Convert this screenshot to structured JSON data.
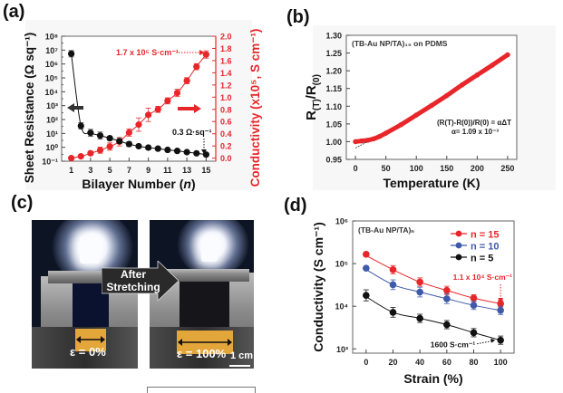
{
  "panels": {
    "a": "(a)",
    "b": "(b)",
    "c": "(c)",
    "d": "(d)"
  },
  "photo_panel": {
    "left_strain_label": "ε = 0%",
    "right_strain_label": "ε = 100%",
    "arrow_label_line1": "After",
    "arrow_label_line2": "Stretching",
    "scale_bar_label": "1 cm",
    "film_color": "#e3a63a"
  },
  "chart_data": [
    {
      "id": "a",
      "type": "line",
      "xlabel": "Bilayer Number (n)",
      "ylabel_left": "Sheet Resistance (Ω sq⁻¹)",
      "ylabel_right": "Conductivity (x10⁵, S cm⁻¹)",
      "x_ticks": [
        1,
        3,
        5,
        7,
        9,
        11,
        13,
        15
      ],
      "xlim": [
        0,
        16
      ],
      "y_left_scale": "log",
      "y_left_lim_exp": [
        -1,
        8
      ],
      "y_left_tick_labels": [
        "10⁻¹",
        "10⁰",
        "10¹",
        "10²",
        "10³",
        "10⁴",
        "10⁵",
        "10⁶",
        "10⁷",
        "10⁸"
      ],
      "y_right_lim": [
        -0.05,
        2.0
      ],
      "y_right_ticks": [
        "0.0",
        "0.2",
        "0.4",
        "0.6",
        "0.8",
        "1.0",
        "1.2",
        "1.4",
        "1.6",
        "1.8",
        "2.0"
      ],
      "x": [
        1,
        2,
        3,
        4,
        5,
        6,
        7,
        8,
        9,
        10,
        11,
        12,
        13,
        14,
        15
      ],
      "series": [
        {
          "name": "Sheet Resistance",
          "axis": "left",
          "color": "#111111",
          "values": [
            5500000,
            35,
            11,
            7,
            4.5,
            2.8,
            1.7,
            1.2,
            0.95,
            0.8,
            0.65,
            0.55,
            0.45,
            0.37,
            0.3
          ],
          "err_factor": [
            1.7,
            1.7,
            1.8,
            1.8,
            1.4,
            1.5,
            1.5,
            1.3,
            1.4,
            1.2,
            1.2,
            1.2,
            1.2,
            1.2,
            1.2
          ]
        },
        {
          "name": "Conductivity",
          "axis": "right",
          "color": "#e8262a",
          "values": [
            0.0,
            0.03,
            0.08,
            0.13,
            0.19,
            0.27,
            0.42,
            0.55,
            0.71,
            0.8,
            0.94,
            1.07,
            1.27,
            1.5,
            1.7
          ],
          "err": [
            0.01,
            0.02,
            0.03,
            0.05,
            0.06,
            0.07,
            0.06,
            0.11,
            0.11,
            0.05,
            0.05,
            0.06,
            0.05,
            0.05,
            0.06
          ]
        }
      ],
      "annotations": [
        {
          "text": "1.7 x 10⁵ S·cm⁻¹",
          "color": "#e8262a"
        },
        {
          "text": "0.3 Ω·sq⁻¹",
          "color": "#111111"
        }
      ]
    },
    {
      "id": "b",
      "type": "line",
      "title": "(TB-Au NP/TA)₁₅ on PDMS",
      "xlabel": "Temperature (K)",
      "ylabel": "R(T)/R(0)",
      "xlim": [
        -15,
        265
      ],
      "x_ticks": [
        0,
        50,
        100,
        150,
        200,
        250
      ],
      "ylim": [
        0.95,
        1.3
      ],
      "y_ticks": [
        "0.95",
        "1.00",
        "1.05",
        "1.10",
        "1.15",
        "1.20",
        "1.25",
        "1.30"
      ],
      "series": [
        {
          "name": "R(T)/R(0)",
          "color": "#e8262a",
          "x": [
            0,
            10,
            20,
            30,
            40,
            50,
            75,
            100,
            125,
            150,
            175,
            200,
            225,
            250
          ],
          "values": [
            1.0,
            1.002,
            1.004,
            1.008,
            1.015,
            1.024,
            1.048,
            1.075,
            1.102,
            1.13,
            1.16,
            1.188,
            1.216,
            1.245
          ]
        }
      ],
      "fit": {
        "x": [
          0,
          20
        ],
        "values": [
          0.982,
          1.0
        ]
      },
      "annotations": [
        {
          "text": "(R(T)-R(0))/R(0) = αΔT"
        },
        {
          "text": "α= 1.09 x 10⁻³"
        }
      ]
    },
    {
      "id": "d",
      "type": "scatter",
      "title": "(TB-Au NP/TA)ₙ",
      "xlabel": "Strain (%)",
      "ylabel": "Conductivity (S cm⁻¹)",
      "xlim": [
        -10,
        110
      ],
      "x_ticks": [
        0,
        20,
        40,
        60,
        80,
        100
      ],
      "y_scale": "log",
      "ylim_exp": [
        2.9,
        6
      ],
      "y_tick_labels": [
        "10³",
        "10⁴",
        "10⁵",
        "10⁶"
      ],
      "x": [
        0,
        20,
        40,
        60,
        80,
        100
      ],
      "legend": "top-right",
      "series": [
        {
          "name": "n = 15",
          "color": "#e8262a",
          "values": [
            165000,
            72000,
            37000,
            23500,
            15500,
            11500
          ],
          "err_factor": [
            1.1,
            1.25,
            1.25,
            1.25,
            1.2,
            1.2
          ]
        },
        {
          "name": "n = 10",
          "color": "#3f5aa8",
          "values": [
            78000,
            32000,
            21500,
            15000,
            10500,
            8000
          ],
          "err_factor": [
            1.1,
            1.3,
            1.3,
            1.3,
            1.25,
            1.25
          ]
        },
        {
          "name": "n = 5",
          "color": "#111111",
          "values": [
            18000,
            7200,
            5200,
            3700,
            2400,
            1600
          ],
          "err_factor": [
            1.35,
            1.3,
            1.25,
            1.25,
            1.25,
            1.25
          ]
        }
      ],
      "annotations": [
        {
          "text": "1.1 x 10⁴ S·cm⁻¹",
          "color": "#e8262a"
        },
        {
          "text": "1600 S·cm⁻¹",
          "color": "#111111"
        }
      ]
    }
  ]
}
